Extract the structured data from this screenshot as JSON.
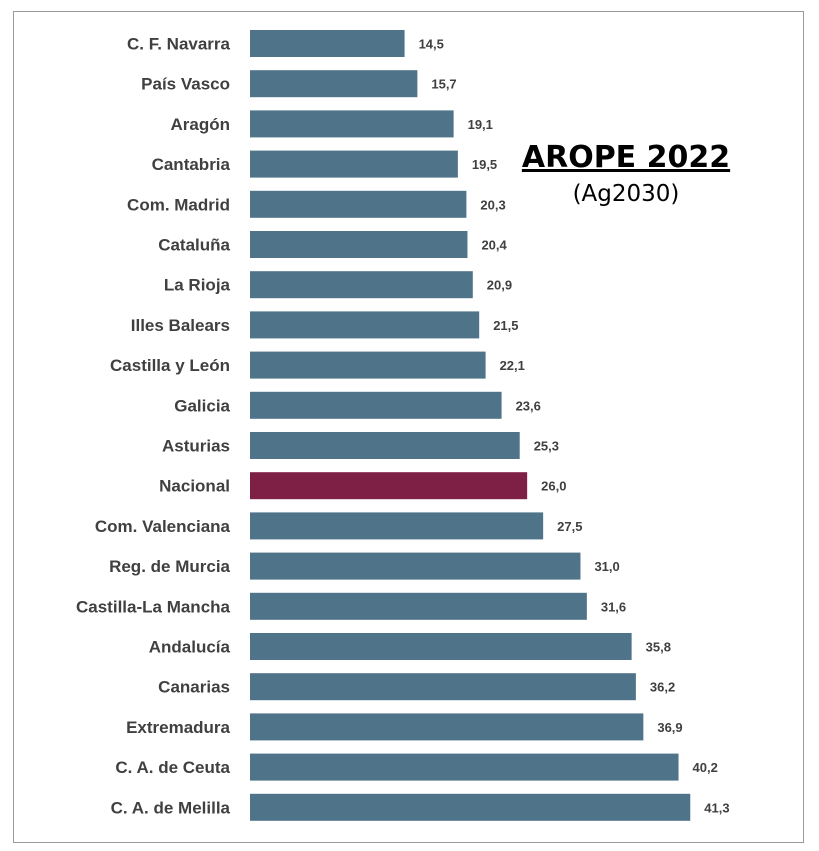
{
  "chart_data": {
    "type": "bar",
    "orientation": "horizontal",
    "title": "AROPE 2022",
    "subtitle": "(Ag2030)",
    "xlabel": "",
    "ylabel": "",
    "xlim": [
      0,
      45
    ],
    "grid": false,
    "legend": "none",
    "categories": [
      "C. F. Navarra",
      "País Vasco",
      "Aragón",
      "Cantabria",
      "Com. Madrid",
      "Cataluña",
      "La Rioja",
      "Illes Balears",
      "Castilla y León",
      "Galicia",
      "Asturias",
      "Nacional",
      "Com. Valenciana",
      "Reg. de Murcia",
      "Castilla-La Mancha",
      "Andalucía",
      "Canarias",
      "Extremadura",
      "C. A. de Ceuta",
      "C. A. de Melilla"
    ],
    "values": [
      14.5,
      15.7,
      19.1,
      19.5,
      20.3,
      20.4,
      20.9,
      21.5,
      22.1,
      23.6,
      25.3,
      26.0,
      27.5,
      31.0,
      31.6,
      35.8,
      36.2,
      36.9,
      40.2,
      41.3
    ],
    "value_labels": [
      "14,5",
      "15,7",
      "19,1",
      "19,5",
      "20,3",
      "20,4",
      "20,9",
      "21,5",
      "22,1",
      "23,6",
      "25,3",
      "26,0",
      "27,5",
      "31,0",
      "31,6",
      "35,8",
      "36,2",
      "36,9",
      "40,2",
      "41,3"
    ],
    "highlight_category": "Nacional",
    "colors": {
      "bar": "#4f7389",
      "highlight": "#7e1f45",
      "text": "#404040"
    }
  }
}
